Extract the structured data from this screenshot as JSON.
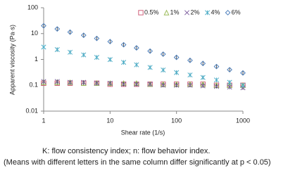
{
  "chart_data": {
    "type": "scatter",
    "x_label": "Shear rate (1/s)",
    "y_label": "Apparent viscosity (Pa·s)",
    "x": [
      1,
      1.6,
      2.5,
      4,
      6.3,
      10,
      16,
      25,
      40,
      63,
      100,
      160,
      250,
      400,
      630,
      1000
    ],
    "series": [
      {
        "name": "0.5%",
        "color": "#d0607a",
        "marker": "square",
        "values": [
          0.12,
          0.12,
          0.12,
          0.12,
          0.12,
          0.11,
          0.11,
          0.11,
          0.11,
          0.11,
          0.11,
          0.11,
          0.11,
          0.1,
          0.1,
          0.1
        ]
      },
      {
        "name": "1%",
        "color": "#9bbb59",
        "marker": "triangle",
        "values": [
          0.13,
          0.13,
          0.13,
          0.12,
          0.12,
          0.12,
          0.12,
          0.12,
          0.11,
          0.11,
          0.11,
          0.11,
          0.11,
          0.1,
          0.1,
          0.1
        ]
      },
      {
        "name": "2%",
        "color": "#7f60a0",
        "marker": "x",
        "values": [
          0.14,
          0.14,
          0.13,
          0.13,
          0.12,
          0.12,
          0.11,
          0.11,
          0.11,
          0.1,
          0.1,
          0.1,
          0.095,
          0.09,
          0.085,
          0.08
        ]
      },
      {
        "name": "4%",
        "color": "#4bacc6",
        "marker": "asterisk",
        "values": [
          3.0,
          2.4,
          1.9,
          1.5,
          1.2,
          0.99,
          0.77,
          0.62,
          0.49,
          0.39,
          0.31,
          0.25,
          0.2,
          0.16,
          0.13,
          0.1
        ]
      },
      {
        "name": "6%",
        "color": "#4f81bd",
        "marker": "diamond",
        "values": [
          20,
          15.1,
          11.4,
          8.6,
          6.5,
          4.9,
          3.7,
          2.8,
          2.1,
          1.6,
          1.2,
          0.92,
          0.7,
          0.53,
          0.4,
          0.3
        ]
      }
    ],
    "xlim": [
      1,
      1000
    ],
    "xticks": [
      1,
      10,
      100,
      1000
    ],
    "xscale": "log",
    "ylim": [
      0.01,
      100
    ],
    "yticks": [
      0.01,
      0.1,
      1,
      10,
      100
    ],
    "yscale": "log",
    "legend": "top-right"
  },
  "caption": [
    "K: flow consistency index; n: flow behavior index.",
    "(Means with different letters in the same column differ significantly at p < 0.05)"
  ]
}
